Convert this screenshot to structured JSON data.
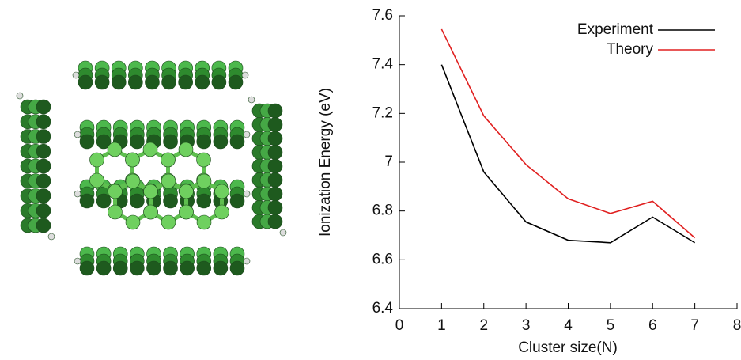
{
  "chart_data": {
    "type": "line",
    "xlabel": "Cluster size(N)",
    "ylabel": "Ionization Energy (eV)",
    "x": [
      1,
      2,
      3,
      4,
      5,
      6,
      7
    ],
    "series": [
      {
        "name": "Experiment",
        "color": "#000000",
        "values": [
          7.4,
          6.96,
          6.755,
          6.68,
          6.67,
          6.775,
          6.67
        ]
      },
      {
        "name": "Theory",
        "color": "#e02020",
        "values": [
          7.545,
          7.19,
          6.99,
          6.85,
          6.79,
          6.84,
          6.69
        ]
      }
    ],
    "xlim": [
      0,
      8
    ],
    "xticks": [
      0,
      1,
      2,
      3,
      4,
      5,
      6,
      7,
      8
    ],
    "ylim": [
      6.4,
      7.6
    ],
    "yticks": [
      6.4,
      6.6,
      6.8,
      7,
      7.2,
      7.4,
      7.6
    ],
    "legend": "upper right"
  }
}
